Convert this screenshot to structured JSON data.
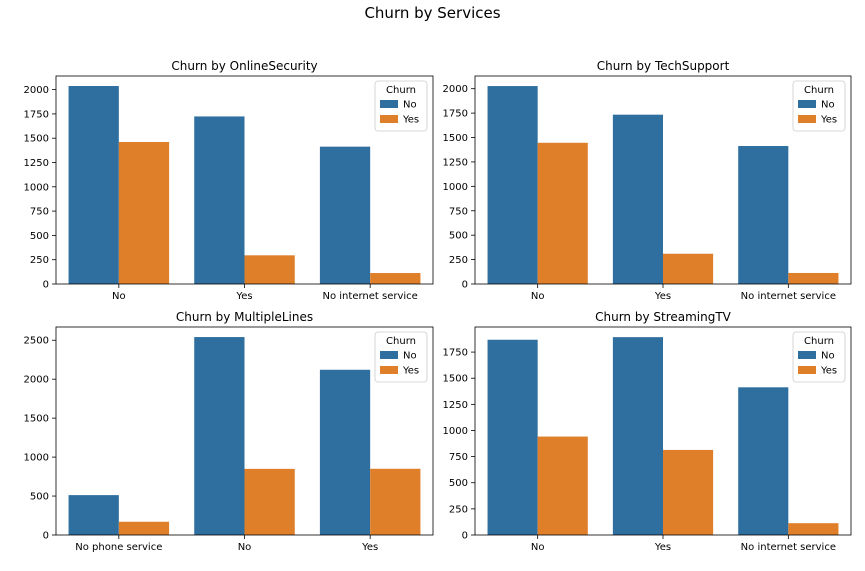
{
  "figure_title": "Churn by Services",
  "colors": {
    "No": "#2f6f9f",
    "Yes": "#e07f2a"
  },
  "chart_data": [
    {
      "type": "bar",
      "title": "Churn by OnlineSecurity",
      "categories": [
        "No",
        "Yes",
        "No internet service"
      ],
      "series": [
        {
          "name": "No",
          "values": [
            2037,
            1724,
            1413
          ]
        },
        {
          "name": "Yes",
          "values": [
            1461,
            295,
            113
          ]
        }
      ],
      "ylim": [
        0,
        2140
      ],
      "yticks": [
        0,
        250,
        500,
        750,
        1000,
        1250,
        1500,
        1750,
        2000
      ],
      "legend": {
        "title": "Churn",
        "position": "top-right"
      },
      "xlabel": "",
      "ylabel": ""
    },
    {
      "type": "bar",
      "title": "Churn by TechSupport",
      "categories": [
        "No",
        "Yes",
        "No internet service"
      ],
      "series": [
        {
          "name": "No",
          "values": [
            2027,
            1734,
            1413
          ]
        },
        {
          "name": "Yes",
          "values": [
            1446,
            310,
            113
          ]
        }
      ],
      "ylim": [
        0,
        2130
      ],
      "yticks": [
        0,
        250,
        500,
        750,
        1000,
        1250,
        1500,
        1750,
        2000
      ],
      "legend": {
        "title": "Churn",
        "position": "top-right"
      },
      "xlabel": "",
      "ylabel": ""
    },
    {
      "type": "bar",
      "title": "Churn by MultipleLines",
      "categories": [
        "No phone service",
        "No",
        "Yes"
      ],
      "series": [
        {
          "name": "No",
          "values": [
            512,
            2541,
            2121
          ]
        },
        {
          "name": "Yes",
          "values": [
            170,
            849,
            850
          ]
        }
      ],
      "ylim": [
        0,
        2670
      ],
      "yticks": [
        0,
        500,
        1000,
        1500,
        2000,
        2500
      ],
      "legend": {
        "title": "Churn",
        "position": "top-right"
      },
      "xlabel": "",
      "ylabel": ""
    },
    {
      "type": "bar",
      "title": "Churn by StreamingTV",
      "categories": [
        "No",
        "Yes",
        "No internet service"
      ],
      "series": [
        {
          "name": "No",
          "values": [
            1868,
            1893,
            1413
          ]
        },
        {
          "name": "Yes",
          "values": [
            942,
            814,
            113
          ]
        }
      ],
      "ylim": [
        0,
        1990
      ],
      "yticks": [
        0,
        250,
        500,
        750,
        1000,
        1250,
        1500,
        1750
      ],
      "legend": {
        "title": "Churn",
        "position": "top-right"
      },
      "xlabel": "",
      "ylabel": ""
    }
  ]
}
